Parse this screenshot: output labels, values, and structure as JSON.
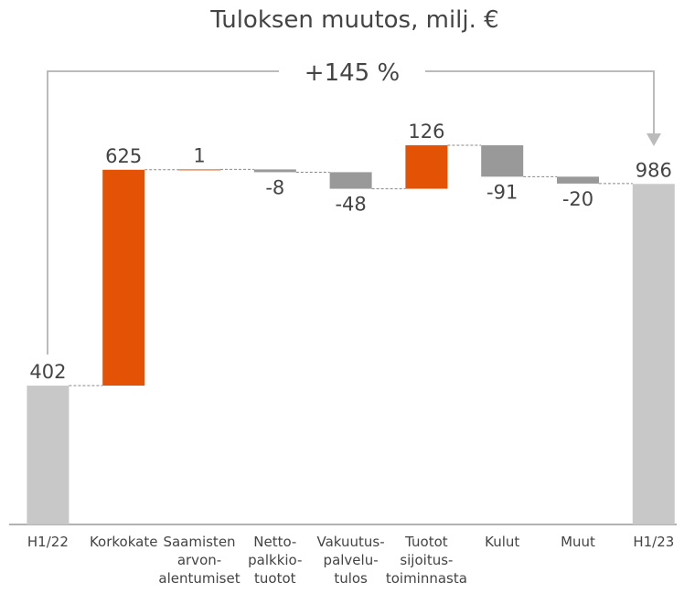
{
  "chart_data": {
    "type": "waterfall",
    "title": "Tuloksen muutos, milj. €",
    "annotation": "+145 %",
    "categories": [
      [
        "H1/22"
      ],
      [
        "Korkokate"
      ],
      [
        "Saamisten",
        "arvon-",
        "alentumiset"
      ],
      [
        "Netto-",
        "palkkio-",
        "tuotot"
      ],
      [
        "Vakuutus-",
        "palvelu-",
        "tulos"
      ],
      [
        "Tuotot",
        "sijoitus-",
        "toiminnasta"
      ],
      [
        "Kulut"
      ],
      [
        "Muut"
      ],
      [
        "H1/23"
      ]
    ],
    "values": [
      402,
      625,
      1,
      -8,
      -48,
      126,
      -91,
      -20,
      986
    ],
    "measure": [
      "absolute",
      "relative",
      "relative",
      "relative",
      "relative",
      "relative",
      "relative",
      "relative",
      "absolute"
    ],
    "colors": {
      "absolute": "#c8c8c8",
      "increase": "#e35205",
      "decrease": "#999999"
    },
    "ylim": [
      0,
      1200
    ]
  }
}
